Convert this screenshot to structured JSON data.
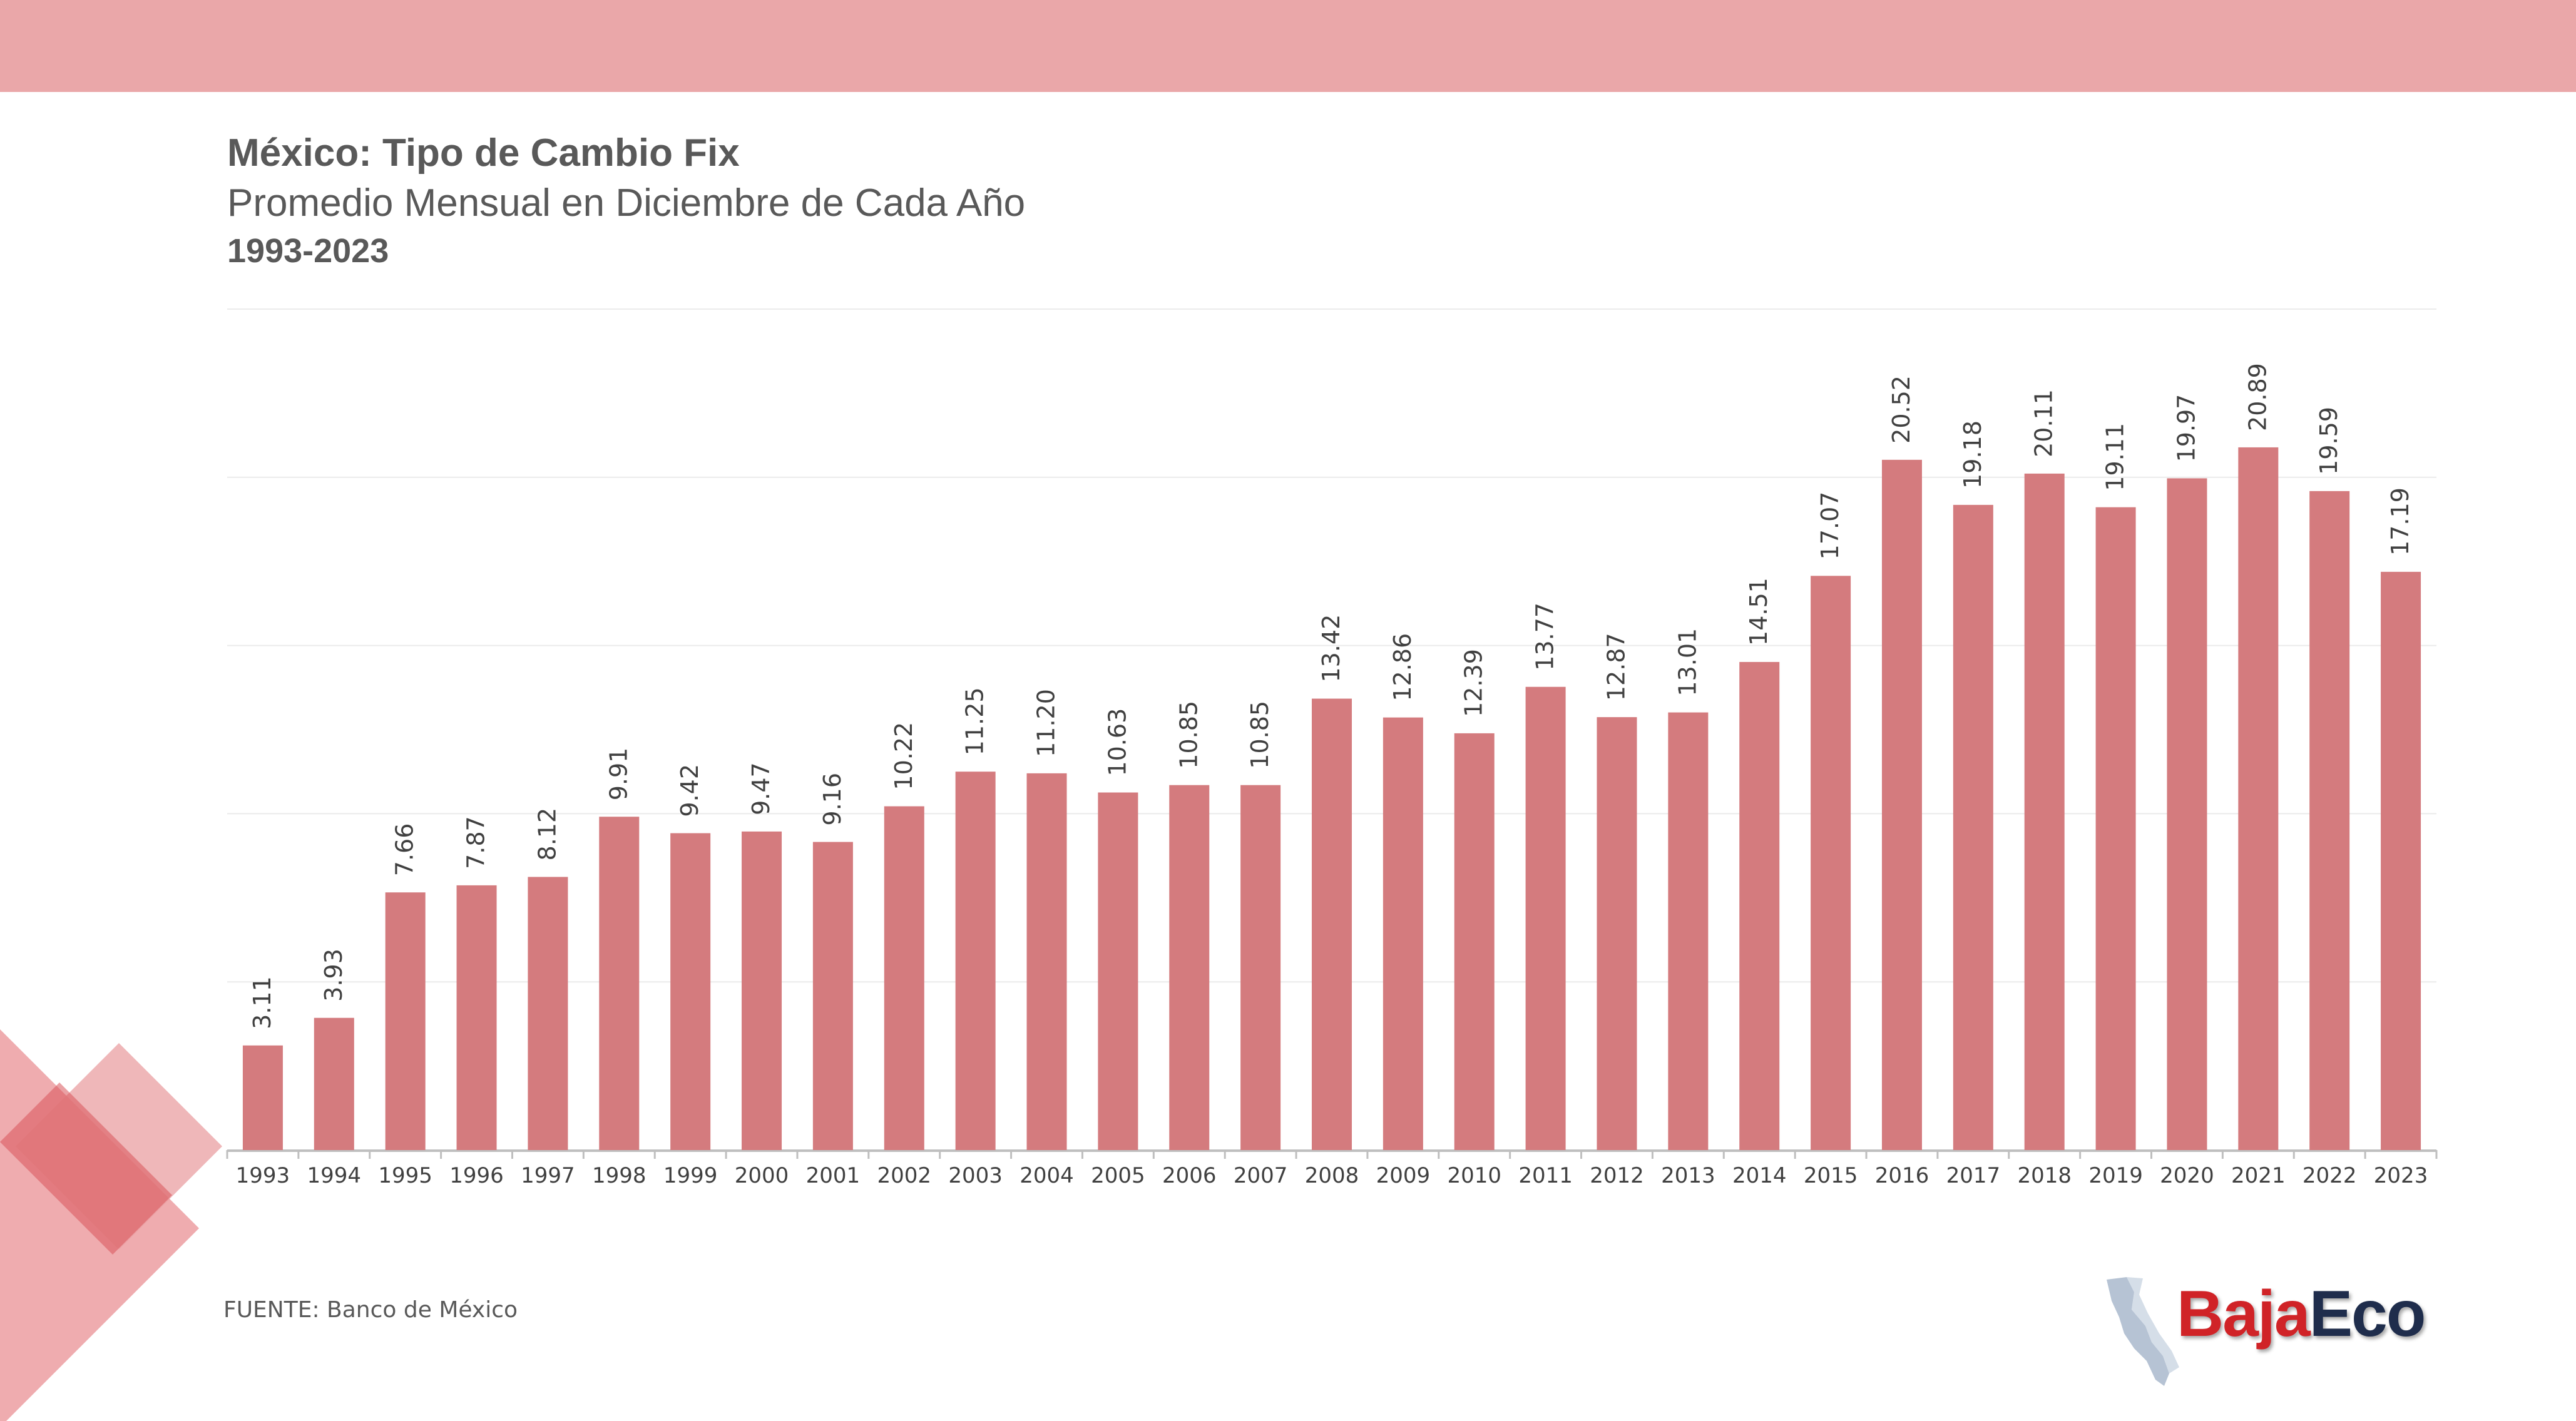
{
  "header": {
    "title": "México: Tipo de Cambio Fix",
    "subtitle": "Promedio Mensual en Diciembre de Cada Año",
    "period": "1993-2023"
  },
  "footer": {
    "source": "FUENTE: Banco de México"
  },
  "logo": {
    "part1": "Baja",
    "part2": "Eco",
    "colors": {
      "part1": "#d02327",
      "part2": "#1f2d4c"
    },
    "icon": "baja-california-map-icon"
  },
  "colors": {
    "bar": "#d47b7e",
    "band": "#eaa7a9",
    "text": "#595959"
  },
  "chart_data": {
    "type": "bar",
    "categories": [
      "1993",
      "1994",
      "1995",
      "1996",
      "1997",
      "1998",
      "1999",
      "2000",
      "2001",
      "2002",
      "2003",
      "2004",
      "2005",
      "2006",
      "2007",
      "2008",
      "2009",
      "2010",
      "2011",
      "2012",
      "2013",
      "2014",
      "2015",
      "2016",
      "2017",
      "2018",
      "2019",
      "2020",
      "2021",
      "2022",
      "2023"
    ],
    "values": [
      3.11,
      3.93,
      7.66,
      7.87,
      8.12,
      9.91,
      9.42,
      9.47,
      9.16,
      10.22,
      11.25,
      11.2,
      10.63,
      10.85,
      10.85,
      13.42,
      12.86,
      12.39,
      13.77,
      12.87,
      13.01,
      14.51,
      17.07,
      20.52,
      19.18,
      20.11,
      19.11,
      19.97,
      20.89,
      19.59,
      17.19
    ],
    "data_labels": [
      "3.11",
      "3.93",
      "7.66",
      "7.87",
      "8.12",
      "9.91",
      "9.42",
      "9.47",
      "9.16",
      "10.22",
      "11.25",
      "11.20",
      "10.63",
      "10.85",
      "10.85",
      "13.42",
      "12.86",
      "12.39",
      "13.77",
      "12.87",
      "13.01",
      "14.51",
      "17.07",
      "20.52",
      "19.18",
      "20.11",
      "19.11",
      "19.97",
      "20.89",
      "19.59",
      "17.19"
    ],
    "ylim": [
      0,
      25
    ],
    "grid": true,
    "legend": "none"
  }
}
